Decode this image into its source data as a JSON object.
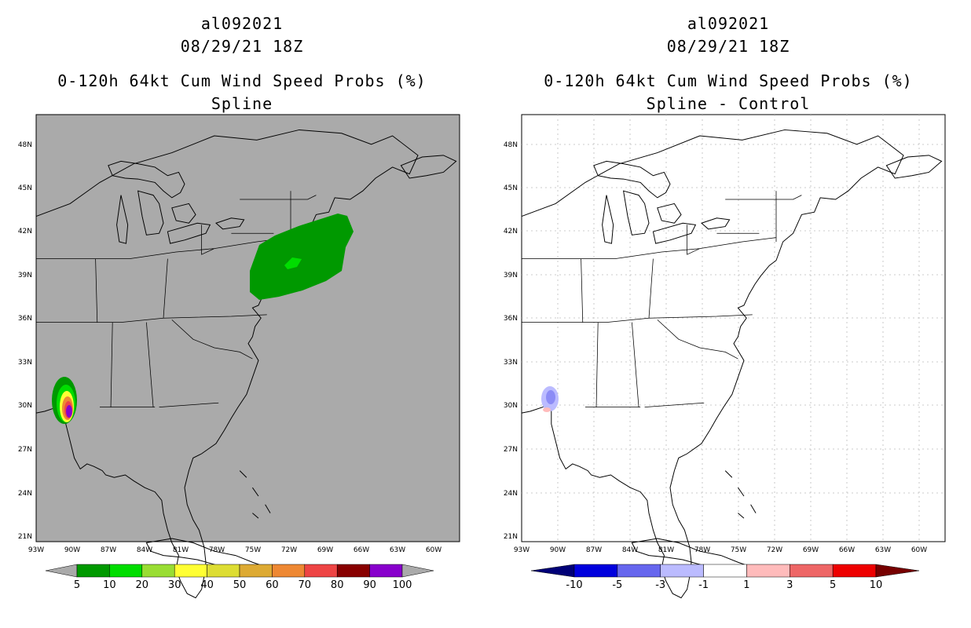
{
  "panels": [
    {
      "title_lines": [
        "al092021",
        "08/29/21 18Z",
        "0-120h 64kt Cum Wind Speed Probs (%)",
        "Spline"
      ],
      "background_color": "#aaaaaa",
      "colorbar": {
        "labels": [
          "5",
          "10",
          "20",
          "30",
          "40",
          "50",
          "60",
          "70",
          "80",
          "90",
          "100"
        ],
        "colors": [
          "#009900",
          "#00dd00",
          "#99dd33",
          "#ffff33",
          "#dddd33",
          "#ddaa33",
          "#ee8833",
          "#ee4444",
          "#880000",
          "#8800cc"
        ],
        "end_low": "#aaaaaa",
        "end_high": "#aaaaaa"
      }
    },
    {
      "title_lines": [
        "al092021",
        "08/29/21 18Z",
        "0-120h 64kt Cum Wind Speed Probs (%)",
        "Spline - Control"
      ],
      "background_color": "#ffffff",
      "colorbar": {
        "labels": [
          "-10",
          "-5",
          "-3",
          "-1",
          "1",
          "3",
          "5",
          "10"
        ],
        "colors": [
          "#0000dd",
          "#6666ee",
          "#bbbbff",
          "#ffffff",
          "#ffbbbb",
          "#ee6666",
          "#ee0000"
        ],
        "end_low": "#000077",
        "end_high": "#770000"
      }
    }
  ],
  "axes": {
    "lat_labels": [
      "48N",
      "45N",
      "42N",
      "39N",
      "36N",
      "33N",
      "30N",
      "27N",
      "24N",
      "21N"
    ],
    "lon_labels": [
      "93W",
      "90W",
      "87W",
      "84W",
      "81W",
      "78W",
      "75W",
      "72W",
      "69W",
      "66W",
      "63W",
      "60W"
    ]
  },
  "colors": {
    "land_line": "#000000",
    "grid_line": "#bbbbbb"
  }
}
